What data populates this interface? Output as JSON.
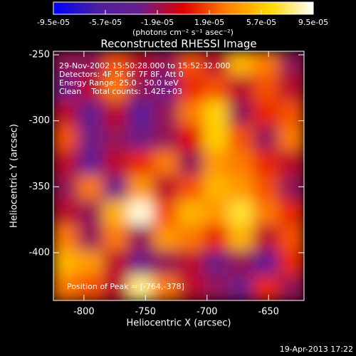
{
  "chart_data": {
    "type": "heatmap",
    "title": "Reconstructed RHESSI Image",
    "x_label": "Heliocentric X (arcsec)",
    "y_label": "Heliocentric Y (arcsec)",
    "colorbar_label": "(photons cm⁻² s⁻¹ asec⁻²)",
    "annotations": [
      "29-Nov-2002 15:50:28.000 to 15:52:32.000",
      "Detectors: 4F 5F 6F 7F 8F, Att 0",
      "Energy Range: 25.0 - 50.0 keV",
      "Clean    Total counts: 1.42E+03"
    ],
    "peak_label": "Position of Peak = [-764,-378]",
    "timestamp": "19-Apr-2013 17:22",
    "xlim": [
      -824.8,
      -621.2
    ],
    "ylim": [
      -436.2,
      -247.3
    ],
    "xticks": [
      -800,
      -750,
      -700,
      -650
    ],
    "yticks": [
      -400,
      -350,
      -300,
      -250
    ],
    "zlim": [
      -9.5e-05,
      9.5e-05
    ],
    "zticks": [
      {
        "value": -9.5e-05,
        "label": "-9.5e-05"
      },
      {
        "value": -5.7e-05,
        "label": "-5.7e-05"
      },
      {
        "value": -1.9e-05,
        "label": "-1.9e-05"
      },
      {
        "value": 1.9e-05,
        "label": "1.9e-05"
      },
      {
        "value": 5.7e-05,
        "label": "5.7e-05"
      },
      {
        "value": 9.5e-05,
        "label": "9.5e-05"
      }
    ],
    "colormap": [
      "#0000ff",
      "#4b1fa0",
      "#6a1f8a",
      "#e00000",
      "#ff8000",
      "#ffd800",
      "#ffffff"
    ],
    "z": [
      [
        -2e-05,
        -2e-05,
        2e-05,
        -1e-05,
        -2e-05,
        2e-05,
        -1e-05,
        5e-05,
        3e-05,
        -2e-05
      ],
      [
        -3e-05,
        -1e-05,
        3e-05,
        -2e-05,
        -3e-05,
        1e-05,
        2e-05,
        -1e-05,
        2e-05,
        -1e-05
      ],
      [
        -1e-05,
        -4e-05,
        -1e-05,
        -5e-05,
        -2e-05,
        3e-05,
        6e-05,
        -2e-05,
        1e-05,
        2e-05
      ],
      [
        2e-05,
        -3e-05,
        -2e-05,
        -3e-05,
        -2e-05,
        0,
        6e-05,
        2e-05,
        -2e-05,
        3e-05
      ],
      [
        -1e-05,
        -4e-05,
        -1e-05,
        1e-05,
        3e-05,
        -2e-05,
        4e-05,
        3e-05,
        1e-05,
        -1e-05
      ],
      [
        -2e-05,
        3e-05,
        -3e-05,
        4e-05,
        -1e-05,
        2e-05,
        5e-05,
        4e-05,
        2e-05,
        -2e-05
      ],
      [
        -1e-05,
        -2e-05,
        5e-05,
        9e-05,
        2e-05,
        5e-05,
        4e-05,
        7e-05,
        3e-05,
        1e-05
      ],
      [
        3e-05,
        -2e-05,
        3e-05,
        -2e-05,
        4e-05,
        3e-05,
        1e-05,
        5e-05,
        -1e-05,
        2e-05
      ],
      [
        5e-05,
        4e-05,
        -1e-05,
        -3e-05,
        -2e-05,
        -1e-05,
        -3e-05,
        -2e-05,
        -4e-05,
        1e-05
      ],
      [
        3e-05,
        2e-05,
        -1e-05,
        8e-05,
        3e-05,
        -1e-05,
        -2e-05,
        -3e-05,
        1e-05,
        -2e-05
      ]
    ]
  }
}
